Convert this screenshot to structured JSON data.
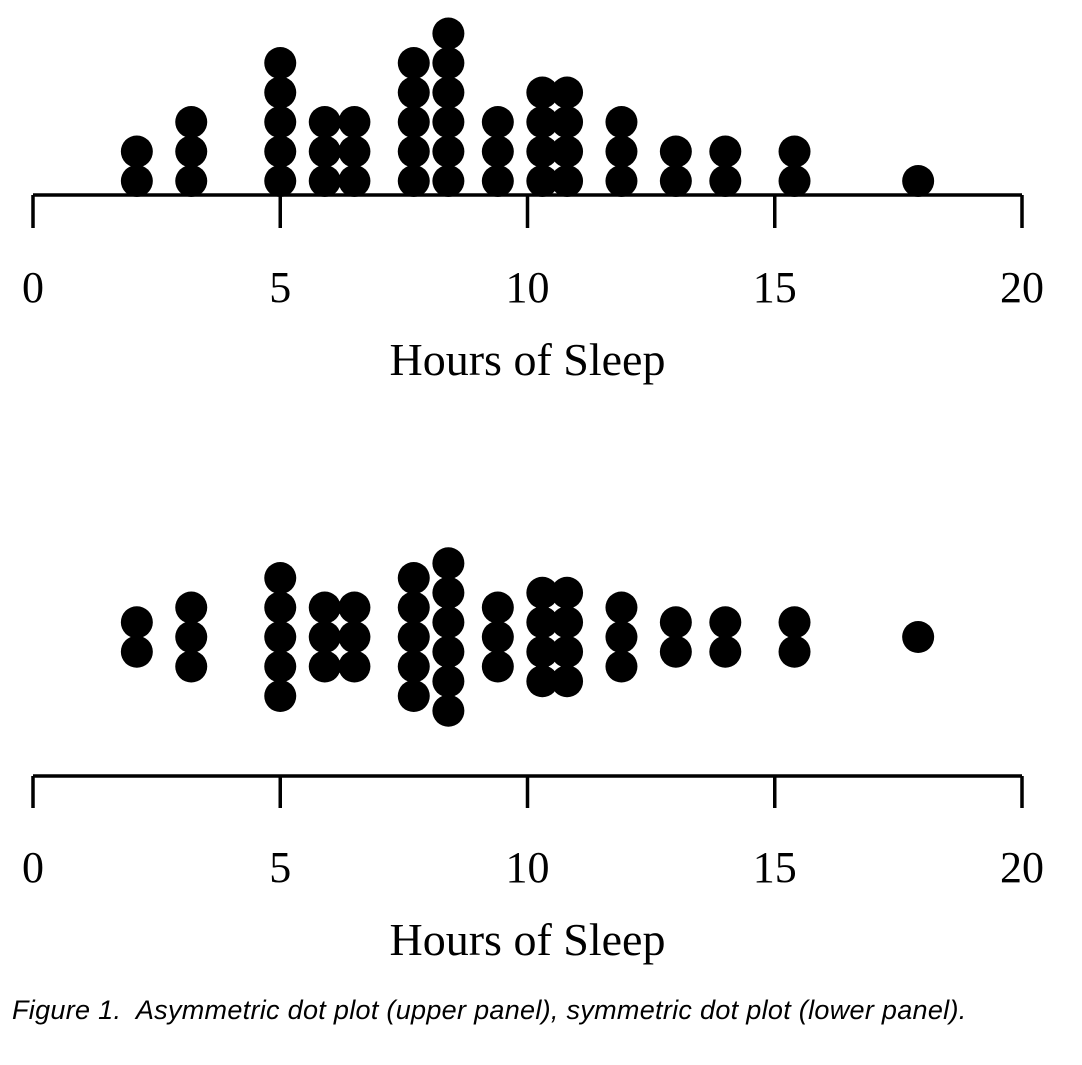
{
  "chart_data": [
    {
      "type": "dot",
      "layout": "asymmetric",
      "panel": "upper",
      "xlabel": "Hours of Sleep",
      "xlim": [
        0,
        20
      ],
      "xticks": [
        "0",
        "5",
        "10",
        "15",
        "20"
      ],
      "stacks": [
        {
          "x": 2.1,
          "count": 2
        },
        {
          "x": 3.2,
          "count": 3
        },
        {
          "x": 5.0,
          "count": 5
        },
        {
          "x": 5.9,
          "count": 3
        },
        {
          "x": 6.5,
          "count": 3
        },
        {
          "x": 7.7,
          "count": 5
        },
        {
          "x": 8.4,
          "count": 6
        },
        {
          "x": 9.4,
          "count": 3
        },
        {
          "x": 10.3,
          "count": 4
        },
        {
          "x": 10.8,
          "count": 4
        },
        {
          "x": 11.9,
          "count": 3
        },
        {
          "x": 13.0,
          "count": 2
        },
        {
          "x": 14.0,
          "count": 2
        },
        {
          "x": 15.4,
          "count": 2
        },
        {
          "x": 17.9,
          "count": 1
        }
      ]
    },
    {
      "type": "dot",
      "layout": "symmetric",
      "panel": "lower",
      "xlabel": "Hours of Sleep",
      "xlim": [
        0,
        20
      ],
      "xticks": [
        "0",
        "5",
        "10",
        "15",
        "20"
      ],
      "stacks": [
        {
          "x": 2.1,
          "count": 2
        },
        {
          "x": 3.2,
          "count": 3
        },
        {
          "x": 5.0,
          "count": 5
        },
        {
          "x": 5.9,
          "count": 3
        },
        {
          "x": 6.5,
          "count": 3
        },
        {
          "x": 7.7,
          "count": 5
        },
        {
          "x": 8.4,
          "count": 6
        },
        {
          "x": 9.4,
          "count": 3
        },
        {
          "x": 10.3,
          "count": 4
        },
        {
          "x": 10.8,
          "count": 4
        },
        {
          "x": 11.9,
          "count": 3
        },
        {
          "x": 13.0,
          "count": 2
        },
        {
          "x": 14.0,
          "count": 2
        },
        {
          "x": 15.4,
          "count": 2
        },
        {
          "x": 17.9,
          "count": 1
        }
      ]
    }
  ],
  "caption": {
    "label": "Figure 1.",
    "text": "Asymmetric dot plot (upper panel), symmetric dot plot (lower panel)."
  },
  "colors": {
    "dot": "#000000",
    "axis": "#000000",
    "background": "#ffffff"
  }
}
